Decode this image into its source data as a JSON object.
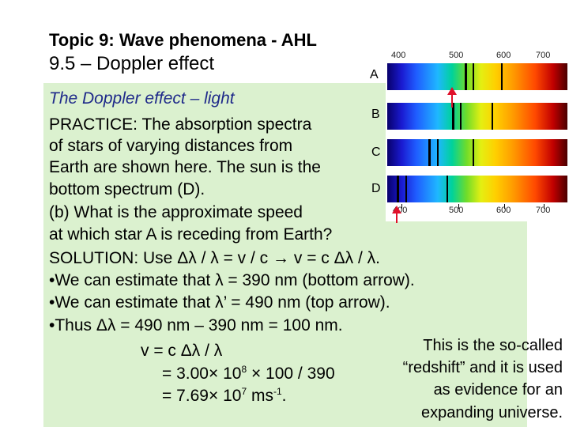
{
  "header": {
    "topic": "Topic 9: Wave phenomena - AHL",
    "subtopic": "9.5 – Doppler effect"
  },
  "section_title": "The Doppler effect – light",
  "practice": [
    "PRACTICE: The absorption spectra",
    "of stars of varying distances from",
    "Earth are shown here. The sun is the",
    "bottom spectrum (D).",
    "(b) What is the approximate speed",
    "at which star A is receding from Earth?"
  ],
  "solution": {
    "label": "SOLUTION: Use",
    "formula": "Δλ / λ = v / c → v = c Δλ / λ.",
    "bullets": [
      "We can estimate that λ = 390 nm (bottom arrow).",
      "We can estimate that λ’ = 490 nm (top arrow).",
      "Thus Δλ = 490 nm – 390 nm = 100 nm."
    ],
    "calc1": "v  = c Δλ / λ",
    "calc2_pre": "= 3.00× 10",
    "calc2_exp": "8",
    "calc2_post": " × 100 / 390",
    "calc3_pre": "= 7.69× 10",
    "calc3_exp": "7",
    "calc3_mid": " ms",
    "calc3_exp2": "-1",
    "calc3_post": "."
  },
  "note": [
    "This is the so-called",
    "“redshift” and it is used",
    "as evidence for an",
    "expanding universe."
  ],
  "spectra": {
    "labels": [
      "A",
      "B",
      "C",
      "D"
    ],
    "scale": [
      "400",
      "500",
      "600",
      "700"
    ],
    "arrow_color": "#e0102a"
  }
}
